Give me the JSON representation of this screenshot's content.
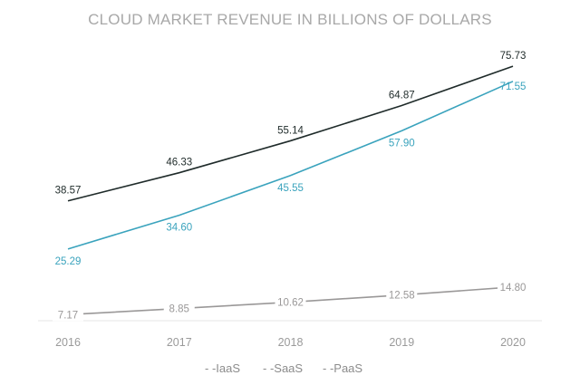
{
  "chart_data": {
    "type": "line",
    "title": "CLOUD MARKET REVENUE IN BILLIONS OF DOLLARS",
    "xlabel": "",
    "ylabel": "",
    "categories": [
      "2016",
      "2017",
      "2018",
      "2019",
      "2020"
    ],
    "ylim": [
      0,
      80
    ],
    "grid": false,
    "legend_position": "bottom-center",
    "series": [
      {
        "name": "IaaS",
        "color": "#3aa3bd",
        "values": [
          25.29,
          34.6,
          45.55,
          57.9,
          71.55
        ],
        "labels": [
          "25.29",
          "34.60",
          "45.55",
          "57.90",
          "71.55"
        ]
      },
      {
        "name": "SaaS",
        "color": "#1f2b2a",
        "values": [
          38.57,
          46.33,
          55.14,
          64.87,
          75.73
        ],
        "labels": [
          "38.57",
          "46.33",
          "55.14",
          "64.87",
          "75.73"
        ]
      },
      {
        "name": "PaaS",
        "color": "#9a9898",
        "values": [
          7.17,
          8.85,
          10.62,
          12.58,
          14.8
        ],
        "labels": [
          "7.17",
          "8.85",
          "10.62",
          "12.58",
          "14.80"
        ]
      }
    ],
    "legend_text": [
      "- -IaaS",
      "- -SaaS",
      "- -PaaS"
    ]
  }
}
